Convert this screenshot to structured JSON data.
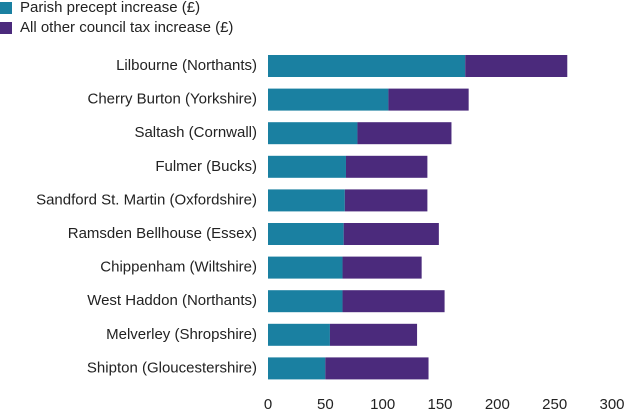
{
  "chart_data": {
    "type": "stacked-barh",
    "categories": [
      "Lilbourne (Northants)",
      "Cherry Burton (Yorkshire)",
      "Saltash (Cornwall)",
      "Fulmer (Bucks)",
      "Sandford St. Martin (Oxfordshire)",
      "Ramsden Bellhouse (Essex)",
      "Chippenham (Wiltshire)",
      "West Haddon (Northants)",
      "Melverley (Shropshire)",
      "Shipton (Gloucestershire)"
    ],
    "series": [
      {
        "name": "Parish precept increase (£)",
        "color": "#1a80a1",
        "values": [
          172,
          105,
          78,
          68,
          67,
          66,
          65,
          65,
          54,
          50
        ]
      },
      {
        "name": "All other council tax increase (£)",
        "color": "#4b2a7c",
        "values": [
          89,
          70,
          82,
          71,
          72,
          83,
          69,
          89,
          76,
          90
        ]
      }
    ],
    "xlim": [
      0,
      300
    ],
    "xticks": [
      0,
      50,
      100,
      150,
      200,
      250,
      300
    ],
    "legend": "top-left"
  }
}
